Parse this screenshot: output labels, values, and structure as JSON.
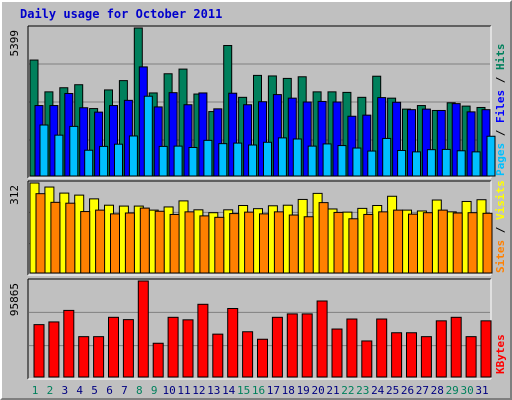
{
  "title": "Daily usage for October 2011",
  "chart_data": [
    {
      "type": "bar",
      "panel": "hits-files-pages",
      "categories": [
        "1",
        "2",
        "3",
        "4",
        "5",
        "6",
        "7",
        "8",
        "9",
        "10",
        "11",
        "12",
        "13",
        "14",
        "15",
        "16",
        "17",
        "18",
        "19",
        "20",
        "21",
        "22",
        "23",
        "24",
        "25",
        "26",
        "27",
        "28",
        "29",
        "30",
        "31"
      ],
      "ymax_label": "5399",
      "ylim": [
        0,
        5399
      ],
      "grid": true,
      "series": [
        {
          "name": "Hits",
          "color": "#00805c",
          "values": [
            4230,
            3070,
            3220,
            3330,
            2460,
            3140,
            3480,
            5399,
            3030,
            3730,
            3900,
            2990,
            2350,
            4760,
            2870,
            3670,
            3650,
            3560,
            3620,
            3070,
            3070,
            3050,
            2870,
            3640,
            2840,
            2440,
            2570,
            2390,
            2670,
            2550,
            2500
          ]
        },
        {
          "name": "Files",
          "color": "#0000ff",
          "values": [
            2570,
            2570,
            3010,
            2490,
            2330,
            2570,
            2760,
            3980,
            2520,
            3040,
            2600,
            3030,
            2450,
            3020,
            2600,
            2710,
            2970,
            2840,
            2700,
            2720,
            2700,
            2180,
            2220,
            2860,
            2690,
            2420,
            2440,
            2390,
            2640,
            2340,
            2420
          ]
        },
        {
          "name": "Pages",
          "color": "#00c0ff",
          "values": [
            1860,
            1490,
            1810,
            940,
            1080,
            1160,
            1460,
            2910,
            1080,
            1090,
            1040,
            1300,
            1180,
            1200,
            1130,
            1230,
            1390,
            1350,
            1090,
            1170,
            1110,
            1020,
            910,
            1370,
            930,
            880,
            960,
            970,
            920,
            880,
            1450
          ]
        }
      ],
      "legend": [
        "Pages",
        "Files",
        "Hits"
      ]
    },
    {
      "type": "bar",
      "panel": "visits-sites",
      "categories": [
        "1",
        "2",
        "3",
        "4",
        "5",
        "6",
        "7",
        "8",
        "9",
        "10",
        "11",
        "12",
        "13",
        "14",
        "15",
        "16",
        "17",
        "18",
        "19",
        "20",
        "21",
        "22",
        "23",
        "24",
        "25",
        "26",
        "27",
        "28",
        "29",
        "30",
        "31"
      ],
      "ymax_label": "312",
      "ylim": [
        0,
        312
      ],
      "grid": true,
      "series": [
        {
          "name": "Visits",
          "color": "#ffff00",
          "values": [
            312,
            298,
            277,
            270,
            257,
            235,
            232,
            232,
            218,
            229,
            250,
            219,
            209,
            219,
            234,
            223,
            233,
            235,
            255,
            276,
            222,
            211,
            224,
            234,
            266,
            218,
            215,
            253,
            212,
            248,
            254
          ]
        },
        {
          "name": "Sites",
          "color": "#ff8000",
          "values": [
            275,
            245,
            242,
            213,
            218,
            205,
            208,
            225,
            214,
            203,
            212,
            198,
            193,
            206,
            211,
            205,
            212,
            201,
            195,
            244,
            210,
            188,
            203,
            212,
            218,
            204,
            209,
            218,
            208,
            209,
            207
          ]
        }
      ],
      "legend": [
        "Sites",
        "Visits"
      ]
    },
    {
      "type": "bar",
      "panel": "kbytes",
      "categories": [
        "1",
        "2",
        "3",
        "4",
        "5",
        "6",
        "7",
        "8",
        "9",
        "10",
        "11",
        "12",
        "13",
        "14",
        "15",
        "16",
        "17",
        "18",
        "19",
        "20",
        "21",
        "22",
        "23",
        "24",
        "25",
        "26",
        "27",
        "28",
        "29",
        "30",
        "31"
      ],
      "ymax_label": "95865",
      "ylim": [
        0,
        95865
      ],
      "grid": true,
      "series": [
        {
          "name": "KBytes",
          "color": "#ff0000",
          "values": [
            52300,
            55000,
            66500,
            40300,
            40300,
            59600,
            57300,
            95865,
            33700,
            59600,
            57100,
            72600,
            42800,
            68400,
            45200,
            37700,
            59600,
            63000,
            63000,
            75900,
            47900,
            57900,
            36000,
            57900,
            44200,
            44200,
            40300,
            56100,
            59600,
            40300,
            56100
          ]
        }
      ],
      "legend": [
        "KBytes"
      ]
    }
  ],
  "x_label_colors": {
    "weekday": "#000080",
    "weekend": "#00805c"
  },
  "weekend_days": [
    1,
    2,
    8,
    9,
    15,
    16,
    22,
    23,
    29,
    30
  ],
  "legend_colors": {
    "Pages": "#00c0ff",
    "Files": "#0000ff",
    "Hits": "#00805c",
    "Sites": "#ff8000",
    "Visits": "#ffff00",
    "KBytes": "#ff0000"
  },
  "separator": "/"
}
